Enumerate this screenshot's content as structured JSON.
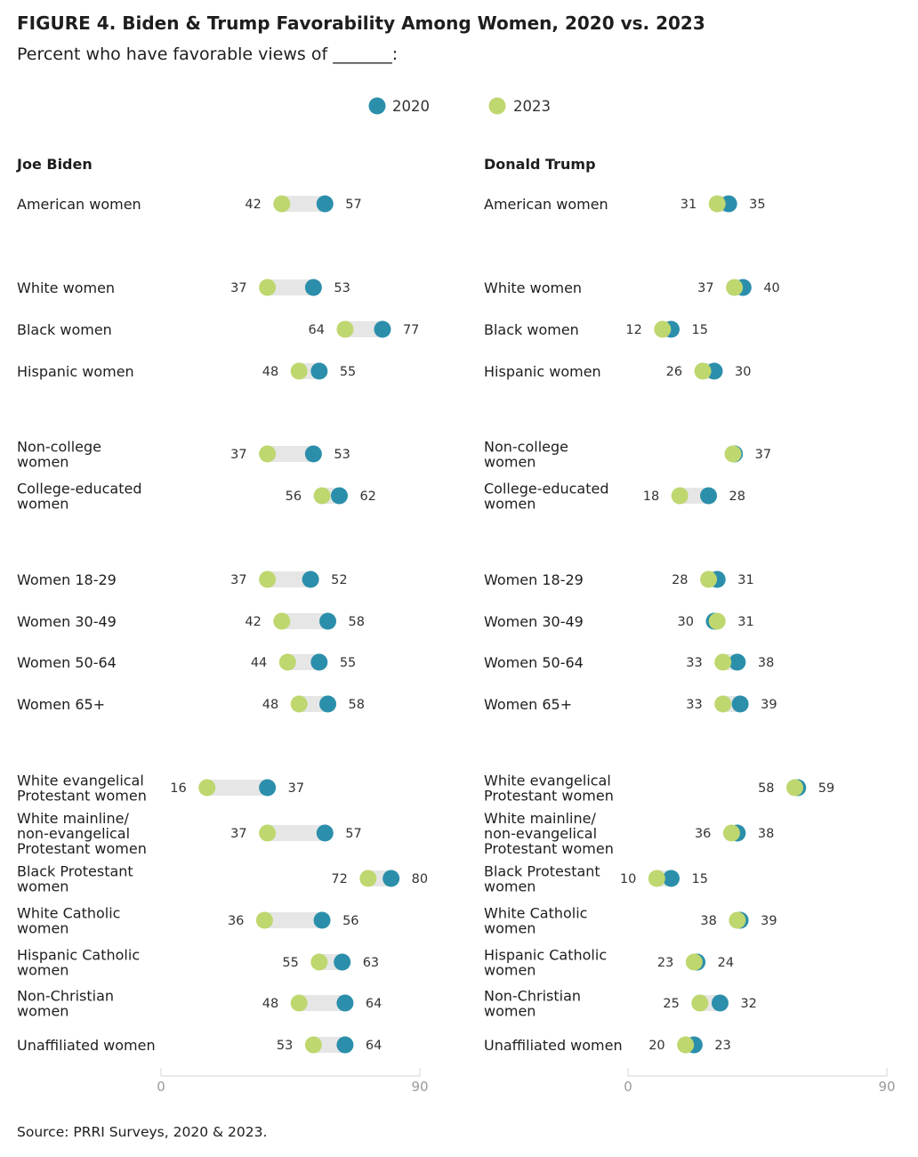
{
  "title": "FIGURE 4. Biden & Trump Favorability Among Women, 2020 vs. 2023",
  "subtitle": "Percent who have favorable views of _______:",
  "source": "Source: PRRI Surveys, 2020 & 2023.",
  "colors": {
    "series_2020": "#2b8fab",
    "series_2023": "#bed76f",
    "connector": "#e6e6e6"
  },
  "chart_data": [
    {
      "type": "dumbbell",
      "title": "Joe Biden",
      "xlim": [
        0,
        90
      ],
      "ticks": [
        "0",
        "90"
      ],
      "legend": {
        "position": "top-center",
        "items": [
          "2020",
          "2023"
        ]
      },
      "series": [
        {
          "name": "2020",
          "values": [
            57,
            53,
            77,
            55,
            53,
            62,
            52,
            58,
            55,
            58,
            37,
            57,
            80,
            56,
            63,
            64,
            64
          ]
        },
        {
          "name": "2023",
          "values": [
            42,
            37,
            64,
            48,
            37,
            56,
            37,
            42,
            44,
            48,
            16,
            37,
            72,
            36,
            55,
            48,
            53
          ]
        }
      ],
      "categories": [
        [
          "American women"
        ],
        [
          "White women"
        ],
        [
          "Black women"
        ],
        [
          "Hispanic women"
        ],
        [
          "Non-college",
          "women"
        ],
        [
          "College-educated",
          "women"
        ],
        [
          "Women 18-29"
        ],
        [
          "Women 30-49"
        ],
        [
          "Women 50-64"
        ],
        [
          "Women 65+"
        ],
        [
          "White evangelical",
          "Protestant women"
        ],
        [
          "White mainline/",
          "non-evangelical",
          "Protestant women"
        ],
        [
          "Black Protestant",
          "women"
        ],
        [
          "White Catholic",
          "women"
        ],
        [
          "Hispanic Catholic",
          "women"
        ],
        [
          "Non-Christian",
          "women"
        ],
        [
          "Unaffiliated women"
        ]
      ],
      "value_labels": [
        [
          "57",
          "42"
        ],
        [
          "53",
          "37"
        ],
        [
          "77",
          "64"
        ],
        [
          "55",
          "48"
        ],
        [
          "53",
          "37"
        ],
        [
          "62",
          "56"
        ],
        [
          "52",
          "37"
        ],
        [
          "58",
          "42"
        ],
        [
          "55",
          "44"
        ],
        [
          "58",
          "48"
        ],
        [
          "37",
          "16"
        ],
        [
          "57",
          "37"
        ],
        [
          "80",
          "72"
        ],
        [
          "56",
          "36"
        ],
        [
          "63",
          "55"
        ],
        [
          "64",
          "48"
        ],
        [
          "64",
          "53"
        ]
      ]
    },
    {
      "type": "dumbbell",
      "title": "Donald Trump",
      "xlim": [
        0,
        90
      ],
      "ticks": [
        "0",
        "90"
      ],
      "series": [
        {
          "name": "2020",
          "values": [
            35,
            40,
            15,
            30,
            37,
            28,
            31,
            30,
            38,
            39,
            59,
            38,
            15,
            39,
            24,
            32,
            23
          ]
        },
        {
          "name": "2023",
          "values": [
            31,
            37,
            12,
            26,
            36.5,
            18,
            28,
            31,
            33,
            33,
            58,
            36,
            10,
            38,
            23,
            25,
            20
          ]
        }
      ],
      "categories": [
        [
          "American women"
        ],
        [
          "White women"
        ],
        [
          "Black women"
        ],
        [
          "Hispanic women"
        ],
        [
          "Non-college",
          "women"
        ],
        [
          "College-educated",
          "women"
        ],
        [
          "Women 18-29"
        ],
        [
          "Women 30-49"
        ],
        [
          "Women 50-64"
        ],
        [
          "Women 65+"
        ],
        [
          "White evangelical",
          "Protestant women"
        ],
        [
          "White mainline/",
          "non-evangelical",
          "Protestant women"
        ],
        [
          "Black Protestant",
          "women"
        ],
        [
          "White Catholic",
          "women"
        ],
        [
          "Hispanic Catholic",
          "women"
        ],
        [
          "Non-Christian",
          "women"
        ],
        [
          "Unaffiliated women"
        ]
      ],
      "value_labels": [
        [
          "35",
          "31"
        ],
        [
          "40",
          "37"
        ],
        [
          "15",
          "12"
        ],
        [
          "30",
          "26"
        ],
        [
          "37",
          ""
        ],
        [
          "28",
          "18"
        ],
        [
          "31",
          "28"
        ],
        [
          "30",
          "31"
        ],
        [
          "38",
          "33"
        ],
        [
          "39",
          "33"
        ],
        [
          "59",
          "58"
        ],
        [
          "38",
          "36"
        ],
        [
          "15",
          "10"
        ],
        [
          "39",
          "38"
        ],
        [
          "24",
          "23"
        ],
        [
          "32",
          "25"
        ],
        [
          "23",
          "20"
        ]
      ]
    }
  ]
}
